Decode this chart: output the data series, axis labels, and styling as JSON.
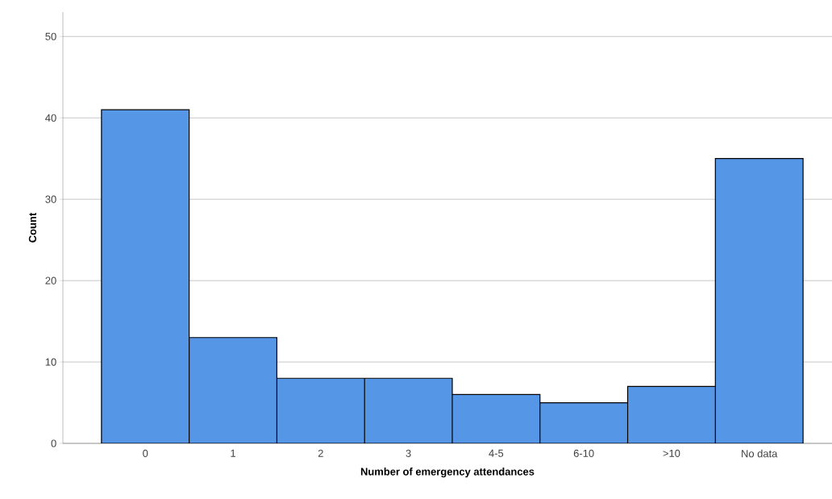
{
  "chart_data": {
    "type": "bar",
    "xlabel": "Number of emergency attendances",
    "ylabel": "Count",
    "categories": [
      "0",
      "1",
      "2",
      "3",
      "4-5",
      "6-10",
      ">10",
      "No data"
    ],
    "values": [
      41,
      13,
      8,
      8,
      6,
      5,
      7,
      35
    ],
    "color": "#5596e6",
    "ylim": [
      0,
      53
    ],
    "yticks": [
      0,
      10,
      20,
      30,
      40,
      50
    ],
    "grid": "y"
  }
}
